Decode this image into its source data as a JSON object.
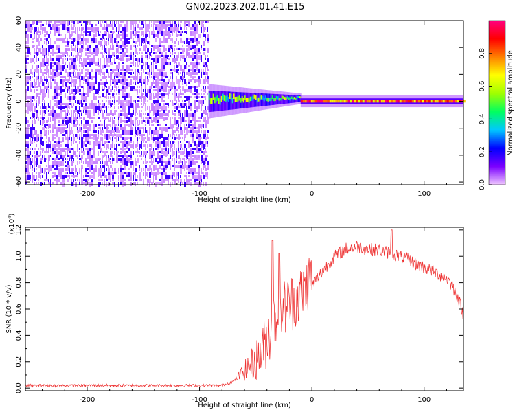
{
  "title": "GN02.2023.202.01.41.E15",
  "chart_data": [
    {
      "type": "heatmap",
      "xlabel": "Height of straight line (km)",
      "ylabel": "Frequency (Hz)",
      "xlim": [
        -255,
        135
      ],
      "ylim": [
        -62,
        60
      ],
      "x_ticks": [
        -200,
        -100,
        0,
        100
      ],
      "y_ticks": [
        -60,
        -40,
        -20,
        0,
        20,
        40,
        60
      ],
      "colorbar": {
        "label": "Normalized spectral amplitude",
        "range": [
          0.0,
          1.0
        ],
        "ticks": [
          0.0,
          0.2,
          0.4,
          0.6,
          0.8
        ],
        "colormap": [
          "#f0c8ff",
          "#7a00ff",
          "#0000ff",
          "#00c8ff",
          "#00ff60",
          "#a0ff00",
          "#ffff00",
          "#ff8000",
          "#ff0000",
          "#ff0080"
        ]
      },
      "regions": [
        {
          "x_range": [
            -255,
            -92
          ],
          "freq_range": [
            -62,
            60
          ],
          "amplitude_range": [
            0.02,
            0.1
          ],
          "pattern": "noise"
        },
        {
          "x_range": [
            -92,
            -10
          ],
          "freq_center": 0,
          "freq_halfwidth": 8,
          "amplitude_range": [
            0.3,
            0.7
          ],
          "pattern": "broadband_transition"
        },
        {
          "x_range": [
            -10,
            135
          ],
          "freq_center": 0,
          "freq_halfwidth": 2,
          "amplitude_range": [
            0.6,
            1.0
          ],
          "pattern": "narrow_line"
        }
      ]
    },
    {
      "type": "line",
      "xlabel": "Height of straight line (km)",
      "ylabel": "SNR (10 * v/v)",
      "y_scale_label": "(x10",
      "y_scale_exponent": "4",
      "xlim": [
        -255,
        135
      ],
      "ylim": [
        -0.02,
        1.22
      ],
      "x_ticks": [
        -200,
        -100,
        0,
        100
      ],
      "y_ticks": [
        0.0,
        0.2,
        0.4,
        0.6,
        0.8,
        1.0,
        1.2
      ],
      "series": [
        {
          "color": "#ee3333",
          "x": [
            -255,
            -200,
            -150,
            -100,
            -80,
            -70,
            -60,
            -50,
            -45,
            -40,
            -35,
            -30,
            -25,
            -20,
            -15,
            -10,
            -5,
            0,
            10,
            20,
            30,
            40,
            50,
            60,
            70,
            80,
            90,
            100,
            110,
            120,
            125,
            130,
            135
          ],
          "y": [
            0.02,
            0.02,
            0.02,
            0.02,
            0.02,
            0.05,
            0.1,
            0.15,
            0.2,
            0.28,
            0.4,
            0.48,
            0.52,
            0.55,
            0.58,
            0.62,
            0.68,
            0.78,
            0.9,
            1.0,
            1.06,
            1.08,
            1.06,
            1.05,
            1.03,
            1.0,
            0.96,
            0.92,
            0.88,
            0.84,
            0.78,
            0.7,
            0.55
          ]
        }
      ],
      "peaks": [
        {
          "x": -35,
          "y": 1.12
        },
        {
          "x": -29,
          "y": 1.02
        },
        {
          "x": 71,
          "y": 1.2
        }
      ]
    }
  ]
}
